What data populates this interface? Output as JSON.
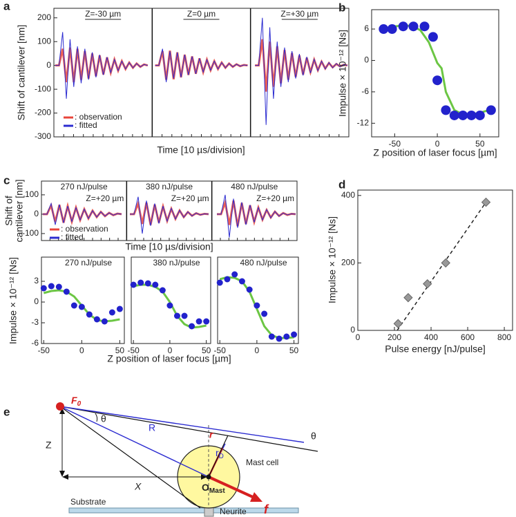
{
  "panel_labels": [
    "a",
    "b",
    "c",
    "d",
    "e"
  ],
  "chart_data": [
    {
      "type": "line",
      "xlabel": "Time [10 µs/division]",
      "ylabel": "Shift of cantilever [nm]",
      "ylim": [
        -300,
        240
      ],
      "yticks": [
        -300,
        -200,
        -100,
        0,
        100,
        200
      ],
      "annotations": [
        "Z=-30 µm",
        "Z=0 µm",
        "Z=+30 µm"
      ],
      "series": [
        {
          "name": ": observation",
          "color": "#e8443a",
          "values": [
            0,
            0,
            70,
            -70,
            75,
            -70,
            70,
            -60,
            60,
            -55,
            50,
            -45,
            42,
            -38,
            34,
            -30,
            25,
            -22,
            18,
            -15,
            12,
            -10,
            8,
            -6,
            4,
            0,
            null,
            0,
            0,
            60,
            -60,
            62,
            -58,
            55,
            -50,
            45,
            -40,
            38,
            -35,
            30,
            -28,
            24,
            -20,
            18,
            -15,
            12,
            -10,
            8,
            -6,
            5,
            -3,
            2,
            0,
            null,
            0,
            0,
            110,
            -110,
            100,
            -90,
            80,
            -75,
            65,
            -60,
            52,
            -48,
            42,
            -38,
            32,
            -28,
            24,
            -20,
            16,
            -13,
            10,
            -8,
            6,
            -4,
            3,
            0
          ]
        },
        {
          "name": ": fitted",
          "color": "#2b2bd0",
          "values": [
            0,
            0,
            140,
            -140,
            110,
            -90,
            80,
            -75,
            70,
            -60,
            55,
            -50,
            45,
            -40,
            35,
            -30,
            25,
            -22,
            18,
            -15,
            12,
            -10,
            8,
            -6,
            4,
            0,
            null,
            0,
            0,
            70,
            -70,
            60,
            -55,
            55,
            -50,
            45,
            -40,
            38,
            -35,
            30,
            -28,
            24,
            -20,
            18,
            -15,
            12,
            -10,
            8,
            -6,
            5,
            -3,
            2,
            0,
            null,
            0,
            0,
            200,
            -250,
            160,
            -140,
            100,
            -90,
            75,
            -70,
            60,
            -55,
            48,
            -42,
            36,
            -32,
            26,
            -22,
            18,
            -15,
            12,
            -10,
            8,
            -6,
            4,
            0
          ]
        }
      ]
    },
    {
      "type": "scatter",
      "xlabel": "Z position of laser focus [µm]",
      "ylabel": "Impulse × 10⁻¹² [Ns]",
      "xlim": [
        -77,
        72
      ],
      "xticks": [
        -50,
        0,
        50
      ],
      "ylim": [
        -14.6,
        9.7
      ],
      "yticks": [
        -12,
        -6,
        0,
        6
      ],
      "points": {
        "color": "#2222cc",
        "x": [
          -63,
          -53,
          -40,
          -28,
          -15,
          -5,
          0,
          10,
          20,
          30,
          40,
          50,
          63
        ],
        "values": [
          6,
          6,
          6.5,
          6.5,
          6.5,
          4.5,
          -3.8,
          -9.5,
          -10.5,
          -10.5,
          -10.5,
          -10.5,
          -9.5
        ]
      },
      "curve": {
        "color": "#6cc644",
        "x": [
          -60,
          -50,
          -40,
          -30,
          -20,
          -10,
          0,
          5,
          10,
          20,
          30,
          40,
          50,
          60
        ],
        "values": [
          6.2,
          6.5,
          6.7,
          6.6,
          5.8,
          3.5,
          -0.5,
          -1.5,
          -6,
          -9.5,
          -10.3,
          -10.3,
          -10,
          -9.5
        ]
      }
    },
    {
      "type": "line",
      "xlabel": "Time [10 µs/division]",
      "ylabel": [
        "Shift of",
        "cantilever [nm]"
      ],
      "ylim": [
        -136,
        171
      ],
      "yticks": [
        -100,
        0,
        100
      ],
      "annotations": [
        "270 nJ/pulse",
        "380 nJ/pulse",
        "480 nJ/pulse"
      ],
      "z_labels": [
        "Z=+20 µm",
        "Z=+20 µm",
        "Z=+20 µm"
      ],
      "series": [
        {
          "name": ": observation",
          "color": "#e8443a",
          "values": [
            0,
            0,
            45,
            -40,
            48,
            -44,
            42,
            -38,
            34,
            -30,
            26,
            -22,
            18,
            -15,
            12,
            -10,
            7,
            -5,
            3,
            0,
            null,
            0,
            0,
            55,
            -50,
            60,
            -55,
            50,
            -44,
            40,
            -34,
            28,
            -24,
            19,
            -15,
            11,
            -8,
            5,
            -3,
            2,
            0,
            null,
            0,
            0,
            60,
            -55,
            70,
            -62,
            58,
            -50,
            46,
            -40,
            34,
            -28,
            22,
            -17,
            13,
            -9,
            6,
            -4,
            2,
            0
          ]
        },
        {
          "name": ": fitted",
          "color": "#2b2bd0",
          "values": [
            0,
            0,
            55,
            -55,
            50,
            -45,
            42,
            -38,
            34,
            -30,
            26,
            -22,
            18,
            -15,
            12,
            -10,
            7,
            -5,
            3,
            0,
            null,
            0,
            0,
            90,
            -100,
            70,
            -60,
            55,
            -48,
            42,
            -36,
            30,
            -25,
            20,
            -16,
            12,
            -9,
            6,
            -4,
            2,
            0,
            null,
            0,
            0,
            100,
            -120,
            80,
            -70,
            62,
            -55,
            48,
            -42,
            35,
            -30,
            24,
            -19,
            14,
            -10,
            6,
            -4,
            2,
            0
          ]
        }
      ]
    },
    {
      "type": "scatter",
      "annotation": "270 nJ/pulse",
      "ylabel": "Impulse × 10⁻¹² [Ns]",
      "xlim": [
        -53,
        56
      ],
      "xticks": [
        -50,
        0,
        50
      ],
      "ylim": [
        -6,
        6.5
      ],
      "yticks": [
        -6,
        -3,
        0,
        3
      ],
      "points": {
        "color": "#2222cc",
        "x": [
          -50,
          -40,
          -30,
          -20,
          -10,
          0,
          10,
          20,
          30,
          40,
          50
        ],
        "values": [
          2,
          2.3,
          2.2,
          1.5,
          -0.5,
          -0.7,
          -1.8,
          -2.5,
          -2.8,
          -1.5,
          -1
        ]
      },
      "curve": {
        "color": "#6cc644",
        "x": [
          -50,
          -40,
          -30,
          -20,
          -10,
          0,
          10,
          20,
          30,
          40,
          50
        ],
        "values": [
          1.3,
          1.6,
          1.7,
          1.5,
          0.8,
          -0.5,
          -1.8,
          -2.6,
          -2.8,
          -2.7,
          -2.5
        ]
      }
    },
    {
      "type": "scatter",
      "annotation": "380 nJ/pulse",
      "xlabel": "Z position of laser focus [µm]",
      "xlim": [
        -53,
        56
      ],
      "xticks": [
        -50,
        0,
        50
      ],
      "ylim": [
        -6,
        6.5
      ],
      "points": {
        "color": "#2222cc",
        "x": [
          -50,
          -40,
          -30,
          -20,
          -10,
          0,
          10,
          20,
          30,
          40,
          50
        ],
        "values": [
          2.5,
          2.8,
          2.7,
          2.5,
          1.7,
          -0.5,
          -2,
          -2,
          -3.5,
          -2.8,
          -2.8
        ]
      },
      "curve": {
        "color": "#6cc644",
        "x": [
          -50,
          -40,
          -30,
          -20,
          -10,
          0,
          10,
          20,
          30,
          40,
          50
        ],
        "values": [
          2.3,
          2.5,
          2.5,
          2.2,
          1.5,
          0,
          -2,
          -3.2,
          -3.7,
          -3.6,
          -3.4
        ]
      }
    },
    {
      "type": "scatter",
      "annotation": "480 nJ/pulse",
      "xlim": [
        -53,
        56
      ],
      "xticks": [
        -50,
        0,
        50
      ],
      "ylim": [
        -6,
        6.5
      ],
      "points": {
        "color": "#2222cc",
        "x": [
          -50,
          -40,
          -30,
          -20,
          -10,
          0,
          10,
          20,
          30,
          40,
          50
        ],
        "values": [
          2.8,
          3.3,
          4,
          3,
          1.8,
          -0.5,
          -1.7,
          -5,
          -5.3,
          -5,
          -4.7
        ]
      },
      "curve": {
        "color": "#6cc644",
        "x": [
          -50,
          -40,
          -30,
          -20,
          -10,
          0,
          10,
          20,
          30,
          40,
          50
        ],
        "values": [
          3.3,
          3.6,
          3.5,
          3,
          1.5,
          -1,
          -3.5,
          -4.8,
          -5.2,
          -5.2,
          -5.1
        ]
      }
    },
    {
      "type": "scatter",
      "xlabel": "Pulse energy [nJ/pulse]",
      "ylabel": "Impulse × 10⁻¹² [Ns]",
      "xlim": [
        0,
        845
      ],
      "xticks": [
        0,
        200,
        400,
        600,
        800
      ],
      "ylim": [
        0,
        416
      ],
      "yticks": [
        0,
        200,
        400
      ],
      "marker": "diamond",
      "points": {
        "color": "#999999",
        "x": [
          220,
          275,
          380,
          480,
          700
        ],
        "values": [
          20,
          97,
          138,
          200,
          380
        ]
      },
      "fit_line": {
        "color": "#222222",
        "x": [
          215,
          700
        ],
        "values": [
          0,
          380
        ]
      }
    }
  ],
  "diagram": {
    "f0": [
      "F",
      "0"
    ],
    "theta_1": "θ",
    "z": "Z",
    "r_big": "R",
    "x": "X",
    "r_small": "r",
    "r_d": [
      "r",
      "D"
    ],
    "theta_2": "θ",
    "mast_cell": "Mast cell",
    "o_mast": [
      "O",
      "Mast"
    ],
    "force": "f",
    "substrate": "Substrate",
    "neurite": "Neurite"
  }
}
